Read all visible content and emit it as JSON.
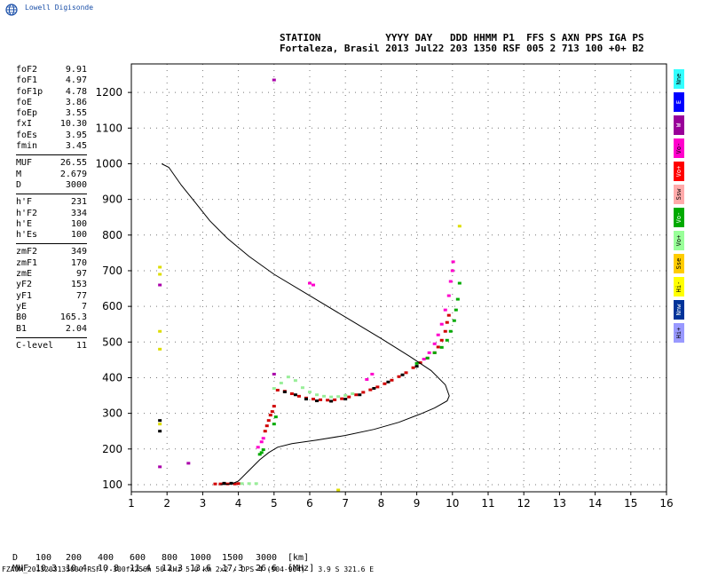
{
  "brand": {
    "name": "Lowell Digisonde",
    "logo_icon": "globe-icon"
  },
  "header": {
    "line1": "STATION           YYYY DAY   DDD HHMM P1  FFS S AXN PPS IGA PS",
    "line2": "Fortaleza, Brasil 2013 Jul22 203 1350 RSF 005 2 713 100 +0+ B2"
  },
  "params": {
    "g1": [
      {
        "k": "foF2",
        "v": "9.91"
      },
      {
        "k": "foF1",
        "v": "4.97"
      },
      {
        "k": "foF1p",
        "v": "4.78"
      },
      {
        "k": "foE",
        "v": "3.86"
      },
      {
        "k": "foEp",
        "v": "3.55"
      },
      {
        "k": "fxI",
        "v": "10.30"
      },
      {
        "k": "foEs",
        "v": "3.95"
      },
      {
        "k": "fmin",
        "v": "3.45"
      }
    ],
    "g2": [
      {
        "k": "MUF",
        "v": "26.55"
      },
      {
        "k": "M",
        "v": "2.679"
      },
      {
        "k": "D",
        "v": "3000"
      }
    ],
    "g3": [
      {
        "k": "h'F",
        "v": "231"
      },
      {
        "k": "h'F2",
        "v": "334"
      },
      {
        "k": "h'E",
        "v": "100"
      },
      {
        "k": "h'Es",
        "v": "100"
      }
    ],
    "g4": [
      {
        "k": "zmF2",
        "v": "349"
      },
      {
        "k": "zmF1",
        "v": "170"
      },
      {
        "k": "zmE",
        "v": "97"
      },
      {
        "k": "yF2",
        "v": "153"
      },
      {
        "k": "yF1",
        "v": "77"
      },
      {
        "k": "yE",
        "v": "7"
      },
      {
        "k": "B0",
        "v": "165.3"
      },
      {
        "k": "B1",
        "v": "2.04"
      }
    ],
    "g5": [
      {
        "k": "C-level",
        "v": "11"
      }
    ]
  },
  "legend": [
    {
      "label": "Nne",
      "color": "#33ffff"
    },
    {
      "label": "E",
      "color": "#0000ff"
    },
    {
      "label": "W",
      "color": "#990099"
    },
    {
      "label": "Vo-",
      "color": "#ff00cc"
    },
    {
      "label": "Vo+",
      "color": "#ff0000"
    },
    {
      "label": "Ssw",
      "color": "#ffaaaa"
    },
    {
      "label": "Vo-",
      "color": "#00aa00"
    },
    {
      "label": "Vo+",
      "color": "#99ff99"
    },
    {
      "label": "Sse",
      "color": "#ffcc00"
    },
    {
      "label": "Hi-",
      "color": "#ffff00"
    },
    {
      "label": "Nnw",
      "color": "#003399"
    },
    {
      "label": "Hi+",
      "color": "#9999ff"
    }
  ],
  "muf_table": {
    "d_label": "D",
    "d_values": [
      "100",
      "200",
      "400",
      "600",
      "800",
      "1000",
      "1500",
      "3000"
    ],
    "d_unit": "[km]",
    "muf_label": "MUF",
    "muf_values": [
      "10.3",
      "10.4",
      "10.8",
      "11.4",
      "12.3",
      "13.6",
      "17.3",
      "26.6"
    ],
    "muf_unit": "[MHz]"
  },
  "footer": "FZA0M_2013203135000.RSF / 300fx256h 50 kHz 5.0 km 2x2 / DPS-4 (904-904)   3.9 S 321.6 E",
  "chart_data": {
    "type": "scatter",
    "xlim": [
      1,
      16
    ],
    "ylim": [
      80,
      1280
    ],
    "x_ticks": [
      "1",
      "2",
      "3",
      "4",
      "5",
      "6",
      "7",
      "8",
      "9",
      "10",
      "11",
      "12",
      "13",
      "14",
      "15",
      "16"
    ],
    "y_ticks": [
      "100",
      "200",
      "300",
      "400",
      "500",
      "600",
      "700",
      "800",
      "900",
      "1000",
      "1100",
      "1200"
    ],
    "x_tick_values": [
      1,
      2,
      3,
      4,
      5,
      6,
      7,
      8,
      9,
      10,
      11,
      12,
      13,
      14,
      15,
      16
    ],
    "y_tick_values": [
      100,
      200,
      300,
      400,
      500,
      600,
      700,
      800,
      900,
      1000,
      1100,
      1200
    ],
    "grid": true,
    "profile": [
      [
        3.5,
        100
      ],
      [
        3.8,
        102
      ],
      [
        4.0,
        110
      ],
      [
        4.3,
        140
      ],
      [
        4.6,
        170
      ],
      [
        4.85,
        190
      ],
      [
        5.1,
        205
      ],
      [
        5.5,
        215
      ],
      [
        6.2,
        225
      ],
      [
        7.0,
        238
      ],
      [
        7.8,
        255
      ],
      [
        8.5,
        275
      ],
      [
        9.1,
        298
      ],
      [
        9.5,
        315
      ],
      [
        9.85,
        335
      ],
      [
        9.91,
        349
      ],
      [
        9.8,
        380
      ],
      [
        9.4,
        420
      ],
      [
        8.8,
        460
      ],
      [
        8.0,
        510
      ],
      [
        7.0,
        570
      ],
      [
        6.0,
        630
      ],
      [
        5.0,
        690
      ],
      [
        4.3,
        740
      ],
      [
        3.7,
        790
      ],
      [
        3.2,
        840
      ],
      [
        2.8,
        890
      ],
      [
        2.4,
        940
      ],
      [
        2.05,
        990
      ],
      [
        1.85,
        1000
      ]
    ],
    "traces": [
      {
        "name": "O-trace (red)",
        "color": "#d00000",
        "points": [
          [
            5.1,
            365
          ],
          [
            5.3,
            362
          ],
          [
            5.5,
            355
          ],
          [
            5.7,
            348
          ],
          [
            5.9,
            343
          ],
          [
            6.1,
            340
          ],
          [
            6.3,
            338
          ],
          [
            6.5,
            337
          ],
          [
            6.7,
            338
          ],
          [
            6.9,
            341
          ],
          [
            7.1,
            346
          ],
          [
            7.3,
            352
          ],
          [
            7.5,
            359
          ],
          [
            7.7,
            366
          ],
          [
            7.9,
            374
          ],
          [
            8.1,
            383
          ],
          [
            8.3,
            393
          ],
          [
            8.5,
            403
          ],
          [
            8.7,
            414
          ],
          [
            8.9,
            428
          ],
          [
            9.1,
            442
          ],
          [
            9.3,
            455
          ],
          [
            9.5,
            470
          ],
          [
            9.6,
            486
          ],
          [
            9.7,
            505
          ],
          [
            9.8,
            530
          ],
          [
            9.85,
            555
          ],
          [
            9.9,
            575
          ]
        ]
      },
      {
        "name": "O-trace low (red)",
        "color": "#d00000",
        "points": [
          [
            4.75,
            250
          ],
          [
            4.8,
            265
          ],
          [
            4.85,
            280
          ],
          [
            4.9,
            295
          ],
          [
            4.95,
            305
          ],
          [
            5.0,
            320
          ],
          [
            3.35,
            102
          ],
          [
            3.5,
            102
          ],
          [
            3.7,
            102
          ],
          [
            3.9,
            102
          ],
          [
            4.0,
            103
          ]
        ]
      },
      {
        "name": "O-trace upper (magenta)",
        "color": "#ff00cc",
        "points": [
          [
            9.2,
            452
          ],
          [
            9.35,
            470
          ],
          [
            9.5,
            495
          ],
          [
            9.6,
            520
          ],
          [
            9.7,
            550
          ],
          [
            9.8,
            590
          ],
          [
            9.9,
            630
          ],
          [
            9.95,
            670
          ],
          [
            10.0,
            700
          ],
          [
            10.02,
            725
          ],
          [
            4.55,
            205
          ],
          [
            4.65,
            220
          ],
          [
            4.7,
            230
          ],
          [
            7.6,
            395
          ],
          [
            7.75,
            410
          ],
          [
            6.0,
            665
          ],
          [
            6.1,
            660
          ]
        ]
      },
      {
        "name": "X-trace (green)",
        "color": "#00aa00",
        "points": [
          [
            9.0,
            440
          ],
          [
            9.3,
            455
          ],
          [
            9.5,
            470
          ],
          [
            9.7,
            485
          ],
          [
            9.85,
            505
          ],
          [
            9.95,
            530
          ],
          [
            10.05,
            560
          ],
          [
            10.1,
            590
          ],
          [
            10.15,
            620
          ],
          [
            10.2,
            665
          ],
          [
            4.6,
            185
          ],
          [
            4.65,
            190
          ],
          [
            4.7,
            198
          ],
          [
            5.0,
            270
          ],
          [
            5.05,
            290
          ]
        ]
      },
      {
        "name": "X-trace (light green)",
        "color": "#99ee99",
        "points": [
          [
            5.0,
            370
          ],
          [
            5.2,
            385
          ],
          [
            5.4,
            402
          ],
          [
            5.6,
            392
          ],
          [
            5.8,
            372
          ],
          [
            6.0,
            360
          ],
          [
            6.2,
            352
          ],
          [
            6.4,
            348
          ],
          [
            6.6,
            346
          ],
          [
            6.8,
            347
          ],
          [
            7.0,
            350
          ],
          [
            7.2,
            355
          ],
          [
            4.1,
            103
          ],
          [
            4.3,
            103
          ],
          [
            4.5,
            103
          ]
        ]
      },
      {
        "name": "dark trace",
        "color": "#000000",
        "points": [
          [
            5.3,
            360
          ],
          [
            5.6,
            352
          ],
          [
            5.9,
            340
          ],
          [
            6.2,
            335
          ],
          [
            6.6,
            334
          ],
          [
            7.0,
            340
          ],
          [
            7.4,
            352
          ],
          [
            7.8,
            370
          ],
          [
            8.2,
            388
          ],
          [
            8.6,
            408
          ],
          [
            9.0,
            432
          ],
          [
            1.8,
            280
          ],
          [
            1.8,
            250
          ],
          [
            3.6,
            104
          ],
          [
            3.8,
            104
          ]
        ]
      },
      {
        "name": "yellow dots",
        "color": "#dddd00",
        "points": [
          [
            1.8,
            710
          ],
          [
            1.8,
            690
          ],
          [
            1.8,
            530
          ],
          [
            1.8,
            480
          ],
          [
            1.8,
            270
          ],
          [
            10.2,
            825
          ],
          [
            6.8,
            85
          ]
        ]
      },
      {
        "name": "misc dots",
        "color": "#aa00aa",
        "points": [
          [
            1.8,
            660
          ],
          [
            1.8,
            150
          ],
          [
            5.0,
            1235
          ],
          [
            5.0,
            410
          ],
          [
            2.6,
            160
          ]
        ]
      }
    ]
  }
}
